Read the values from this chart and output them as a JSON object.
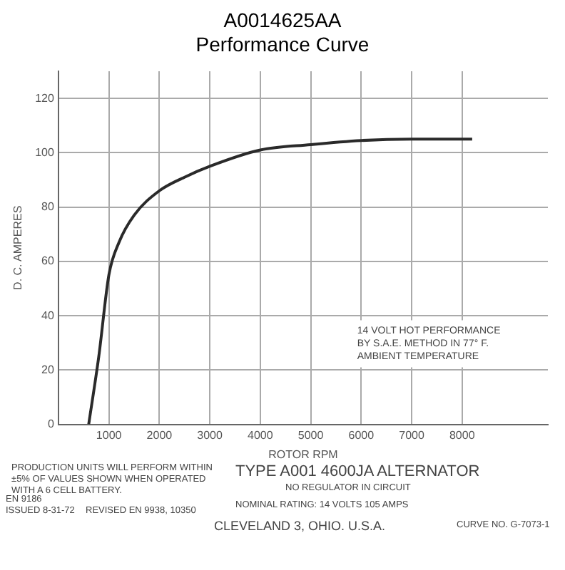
{
  "chart_data": {
    "type": "line",
    "title": "A0014625AA",
    "subtitle": "Performance Curve",
    "xlabel": "ROTOR RPM",
    "ylabel": "D. C. AMPERES",
    "x": [
      600,
      800,
      1000,
      1200,
      1500,
      2000,
      2500,
      3000,
      4000,
      5000,
      6000,
      7000,
      8200
    ],
    "series": [
      {
        "color": "#2a2a2a",
        "values": [
          0,
          25,
          55,
          67,
          77,
          86,
          91,
          95,
          101,
          103,
          104.5,
          105,
          105
        ]
      }
    ],
    "xlim": [
      0,
      9700
    ],
    "xticks": [
      1000,
      2000,
      3000,
      4000,
      5000,
      6000,
      7000,
      8000
    ],
    "ylim": [
      0,
      130
    ],
    "yticks": [
      0,
      20,
      40,
      60,
      80,
      100,
      120
    ],
    "grid": true,
    "legend": false,
    "marker": "none",
    "line_style": "solid",
    "annotations": [
      "14 VOLT HOT PERFORMANCE\nBY S.A.E. METHOD IN 77° F.\nAMBIENT TEMPERATURE",
      "PRODUCTION UNITS WILL PERFORM WITHIN\n±5% OF VALUES SHOWN WHEN OPERATED\nWITH A 6 CELL BATTERY.",
      "EN 9186",
      "ISSUED 8-31-72",
      "REVISED EN 9938, 10350",
      "TYPE A001 4600JA ALTERNATOR",
      "NO REGULATOR IN CIRCUIT",
      "NOMINAL RATING: 14 VOLTS 105 AMPS",
      "CLEVELAND 3, OHIO. U.S.A.",
      "CURVE NO. G-7073-1"
    ]
  }
}
